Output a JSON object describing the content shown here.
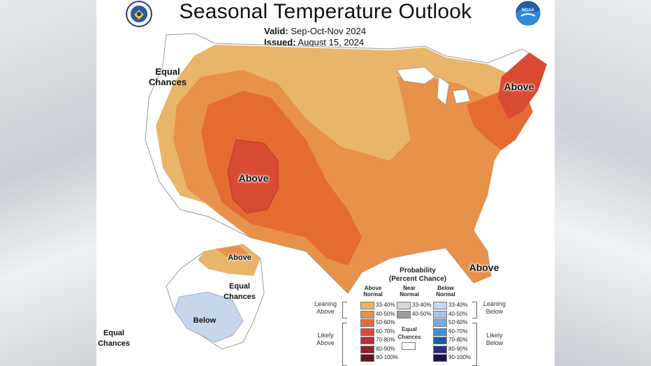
{
  "title": "Seasonal Temperature Outlook",
  "valid_label": "Valid:",
  "valid_value": "Sep-Oct-Nov 2024",
  "issued_label": "Issued:",
  "issued_value": "August 15, 2024",
  "logos": {
    "left": "commerce-seal-icon",
    "right": "noaa-logo-icon"
  },
  "map_labels": {
    "equal_chances_west": "Equal Chances",
    "above_southwest": "Above",
    "above_northeast": "Above",
    "above_florida": "Above",
    "above_alaska": "Above",
    "equal_chances_alaska": "Equal Chances",
    "below_alaska": "Below",
    "equal_chances_southwest_corner": "Equal Chances"
  },
  "legend": {
    "title_line1": "Probability",
    "title_line2": "(Percent Chance)",
    "col_above": "Above Normal",
    "col_near": "Near Normal",
    "col_below": "Below Normal",
    "leaning_above": "Leaning Above",
    "likely_above": "Likely Above",
    "leaning_below": "Leaning Below",
    "likely_below": "Likely Below",
    "equal_chances": "Equal Chances",
    "above_rows": [
      {
        "label": "33-40%",
        "color": "#e8b56a"
      },
      {
        "label": "40-50%",
        "color": "#e8914a"
      },
      {
        "label": "50-60%",
        "color": "#e46c32"
      },
      {
        "label": "60-70%",
        "color": "#d94a33"
      },
      {
        "label": "70-80%",
        "color": "#c9283a"
      },
      {
        "label": "80-90%",
        "color": "#98202c"
      },
      {
        "label": "90-100%",
        "color": "#5e1620"
      }
    ],
    "near_rows": [
      {
        "label": "33-40%",
        "color": "#d8d8d8"
      },
      {
        "label": "40-50%",
        "color": "#9c9c9c"
      }
    ],
    "below_rows": [
      {
        "label": "33-40%",
        "color": "#c6d6ec"
      },
      {
        "label": "40-50%",
        "color": "#a8c4e6"
      },
      {
        "label": "50-60%",
        "color": "#78acdc"
      },
      {
        "label": "60-70%",
        "color": "#3f8fd0"
      },
      {
        "label": "70-80%",
        "color": "#1660aa"
      },
      {
        "label": "80-90%",
        "color": "#2b2a84"
      },
      {
        "label": "90-100%",
        "color": "#1c1050"
      }
    ]
  }
}
